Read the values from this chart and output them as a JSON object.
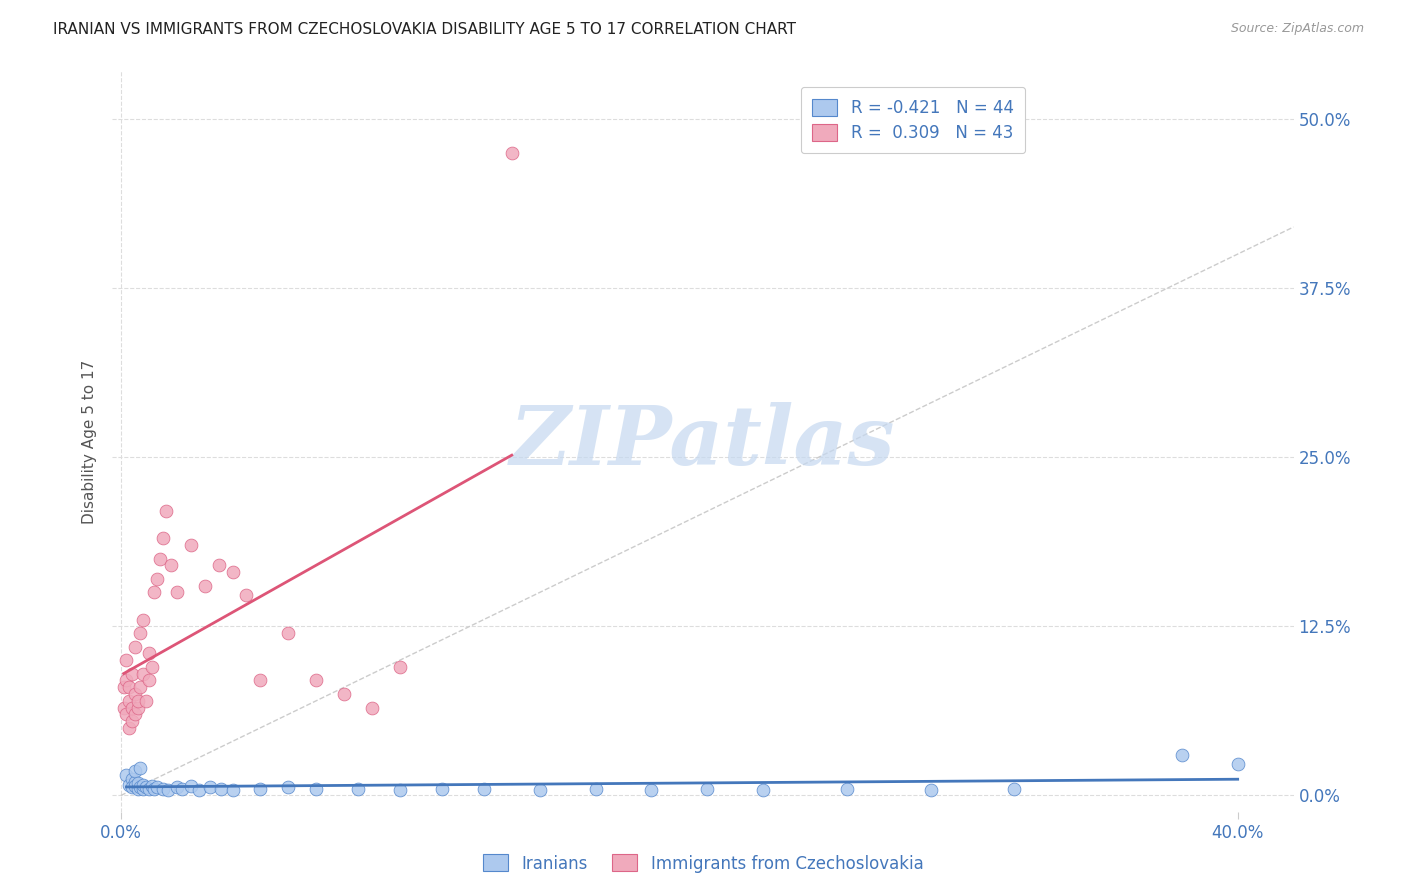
{
  "title": "IRANIAN VS IMMIGRANTS FROM CZECHOSLOVAKIA DISABILITY AGE 5 TO 17 CORRELATION CHART",
  "source": "Source: ZipAtlas.com",
  "ylabel": "Disability Age 5 to 17",
  "x_tick_labels_bottom": [
    "0.0%",
    "40.0%"
  ],
  "x_tick_vals_bottom": [
    0.0,
    0.4
  ],
  "y_tick_labels_right": [
    "0.0%",
    "12.5%",
    "25.0%",
    "37.5%",
    "50.0%"
  ],
  "y_tick_vals": [
    0.0,
    0.125,
    0.25,
    0.375,
    0.5
  ],
  "xlim": [
    -0.003,
    0.42
  ],
  "ylim": [
    -0.012,
    0.535
  ],
  "blue_color": "#adc9ee",
  "pink_color": "#f0aabc",
  "blue_edge_color": "#5588cc",
  "pink_edge_color": "#dd6688",
  "blue_line_color": "#4477bb",
  "pink_line_color": "#dd5577",
  "diagonal_color": "#cccccc",
  "grid_color": "#dddddd",
  "label_color": "#4477bb",
  "watermark_color": "#c5d8f0",
  "legend_R_blue": "-0.421",
  "legend_N_blue": "44",
  "legend_R_pink": "0.309",
  "legend_N_pink": "43",
  "legend_label_blue": "Iranians",
  "legend_label_pink": "Immigrants from Czechoslovakia",
  "blue_scatter_x": [
    0.002,
    0.003,
    0.004,
    0.004,
    0.005,
    0.005,
    0.005,
    0.006,
    0.006,
    0.007,
    0.007,
    0.008,
    0.008,
    0.009,
    0.01,
    0.011,
    0.012,
    0.013,
    0.015,
    0.017,
    0.02,
    0.022,
    0.025,
    0.028,
    0.032,
    0.036,
    0.04,
    0.05,
    0.06,
    0.07,
    0.085,
    0.1,
    0.115,
    0.13,
    0.15,
    0.17,
    0.19,
    0.21,
    0.23,
    0.26,
    0.29,
    0.32,
    0.38,
    0.4
  ],
  "blue_scatter_y": [
    0.015,
    0.008,
    0.012,
    0.006,
    0.01,
    0.007,
    0.018,
    0.005,
    0.009,
    0.006,
    0.02,
    0.005,
    0.008,
    0.006,
    0.005,
    0.007,
    0.005,
    0.006,
    0.005,
    0.004,
    0.006,
    0.005,
    0.007,
    0.004,
    0.006,
    0.005,
    0.004,
    0.005,
    0.006,
    0.005,
    0.005,
    0.004,
    0.005,
    0.005,
    0.004,
    0.005,
    0.004,
    0.005,
    0.004,
    0.005,
    0.004,
    0.005,
    0.03,
    0.023
  ],
  "pink_scatter_x": [
    0.001,
    0.001,
    0.002,
    0.002,
    0.002,
    0.003,
    0.003,
    0.003,
    0.004,
    0.004,
    0.004,
    0.005,
    0.005,
    0.005,
    0.006,
    0.006,
    0.007,
    0.007,
    0.008,
    0.008,
    0.009,
    0.01,
    0.01,
    0.011,
    0.012,
    0.013,
    0.014,
    0.015,
    0.016,
    0.018,
    0.02,
    0.025,
    0.03,
    0.035,
    0.04,
    0.045,
    0.05,
    0.06,
    0.07,
    0.08,
    0.09,
    0.1,
    0.14
  ],
  "pink_scatter_y": [
    0.065,
    0.08,
    0.06,
    0.085,
    0.1,
    0.05,
    0.07,
    0.08,
    0.055,
    0.065,
    0.09,
    0.06,
    0.075,
    0.11,
    0.065,
    0.07,
    0.12,
    0.08,
    0.09,
    0.13,
    0.07,
    0.085,
    0.105,
    0.095,
    0.15,
    0.16,
    0.175,
    0.19,
    0.21,
    0.17,
    0.15,
    0.185,
    0.155,
    0.17,
    0.165,
    0.148,
    0.085,
    0.12,
    0.085,
    0.075,
    0.065,
    0.095,
    0.475
  ]
}
